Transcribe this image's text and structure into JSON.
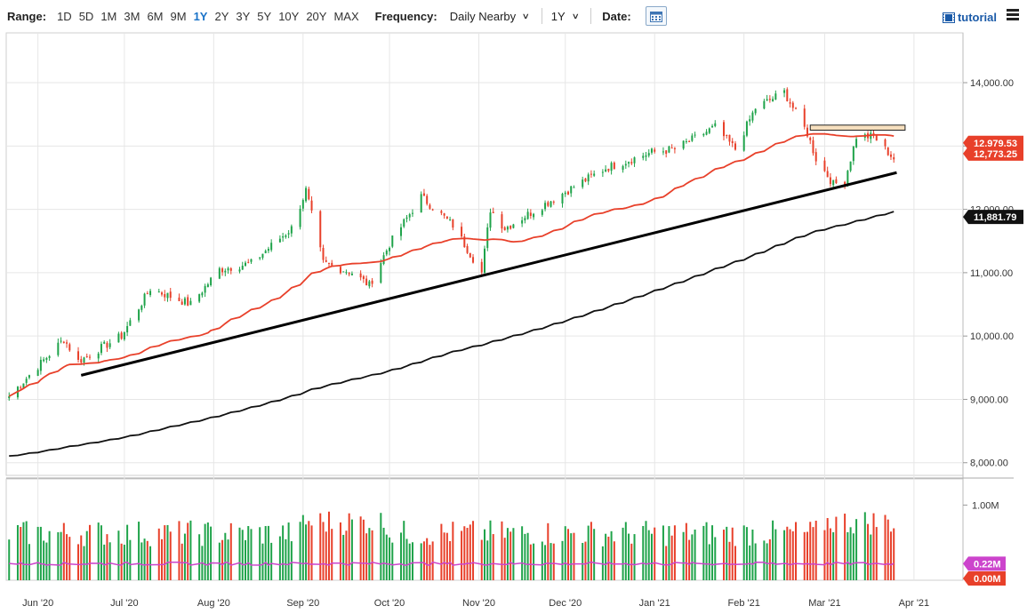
{
  "toolbar": {
    "range_label": "Range:",
    "ranges": [
      "1D",
      "5D",
      "1M",
      "3M",
      "6M",
      "9M",
      "1Y",
      "2Y",
      "3Y",
      "5Y",
      "10Y",
      "20Y",
      "MAX"
    ],
    "active_range": "1Y",
    "frequency_label": "Frequency:",
    "frequency_value": "Daily Nearby",
    "period_value": "1Y",
    "date_label": "Date:",
    "tutorial_label": "tutorial"
  },
  "colors": {
    "up": "#1fa34a",
    "down": "#e8402a",
    "ma_short": "#e8402a",
    "ma_long": "#111111",
    "volume_avg": "#cc44cc",
    "resistance_zone": "#f6dfbe"
  },
  "chart_data": [
    {
      "type": "candlestick",
      "x_axis_labels": [
        "Jun '20",
        "Jul '20",
        "Aug '20",
        "Sep '20",
        "Oct '20",
        "Nov '20",
        "Dec '20",
        "Jan '21",
        "Feb '21",
        "Mar '21",
        "Apr '21"
      ],
      "y_tick_labels": [
        "8,000.00",
        "9,000.00",
        "10,000.00",
        "11,000.00",
        "12,000.00",
        "13,000.00",
        "14,000.00"
      ],
      "ylim": [
        7800,
        14800
      ],
      "grid": true,
      "approx_path": [
        [
          "2020-05-22",
          9050
        ],
        [
          "2020-06-10",
          9950
        ],
        [
          "2020-06-15",
          9600
        ],
        [
          "2020-06-30",
          10000
        ],
        [
          "2020-07-10",
          10750
        ],
        [
          "2020-07-24",
          10500
        ],
        [
          "2020-08-03",
          11050
        ],
        [
          "2020-08-14",
          11150
        ],
        [
          "2020-08-28",
          11700
        ],
        [
          "2020-09-02",
          12300
        ],
        [
          "2020-09-08",
          11150
        ],
        [
          "2020-09-18",
          11000
        ],
        [
          "2020-09-24",
          10800
        ],
        [
          "2020-10-01",
          11450
        ],
        [
          "2020-10-12",
          12200
        ],
        [
          "2020-10-23",
          11750
        ],
        [
          "2020-11-02",
          11000
        ],
        [
          "2020-11-05",
          12000
        ],
        [
          "2020-11-10",
          11700
        ],
        [
          "2020-11-30",
          12250
        ],
        [
          "2020-12-15",
          12650
        ],
        [
          "2020-12-31",
          12900
        ],
        [
          "2021-01-08",
          12950
        ],
        [
          "2021-01-22",
          13300
        ],
        [
          "2021-01-29",
          12950
        ],
        [
          "2021-02-05",
          13600
        ],
        [
          "2021-02-15",
          13850
        ],
        [
          "2021-02-23",
          13200
        ],
        [
          "2021-02-26",
          12800
        ],
        [
          "2021-03-04",
          12400
        ],
        [
          "2021-03-08",
          12450
        ],
        [
          "2021-03-12",
          13150
        ],
        [
          "2021-03-18",
          13150
        ],
        [
          "2021-03-22",
          12950
        ],
        [
          "2021-03-25",
          12800
        ]
      ],
      "last_prices": {
        "close": "12,979.53",
        "ma_short": "12,773.25",
        "ma_long": "11,881.79"
      },
      "annotations": [
        {
          "kind": "trendline",
          "from": [
            "2020-06-16",
            9380
          ],
          "to": [
            "2021-03-26",
            12580
          ]
        },
        {
          "kind": "resistance_zone",
          "from": "2021-02-24",
          "to": "2021-04-01",
          "low": 13250,
          "high": 13330
        }
      ]
    },
    {
      "type": "bar",
      "name": "volume",
      "y_tick_labels": [
        "1.00M"
      ],
      "avg_value_label": "0.22M",
      "zero_label": "0.00M",
      "ylim": [
        0,
        1.3
      ]
    }
  ]
}
